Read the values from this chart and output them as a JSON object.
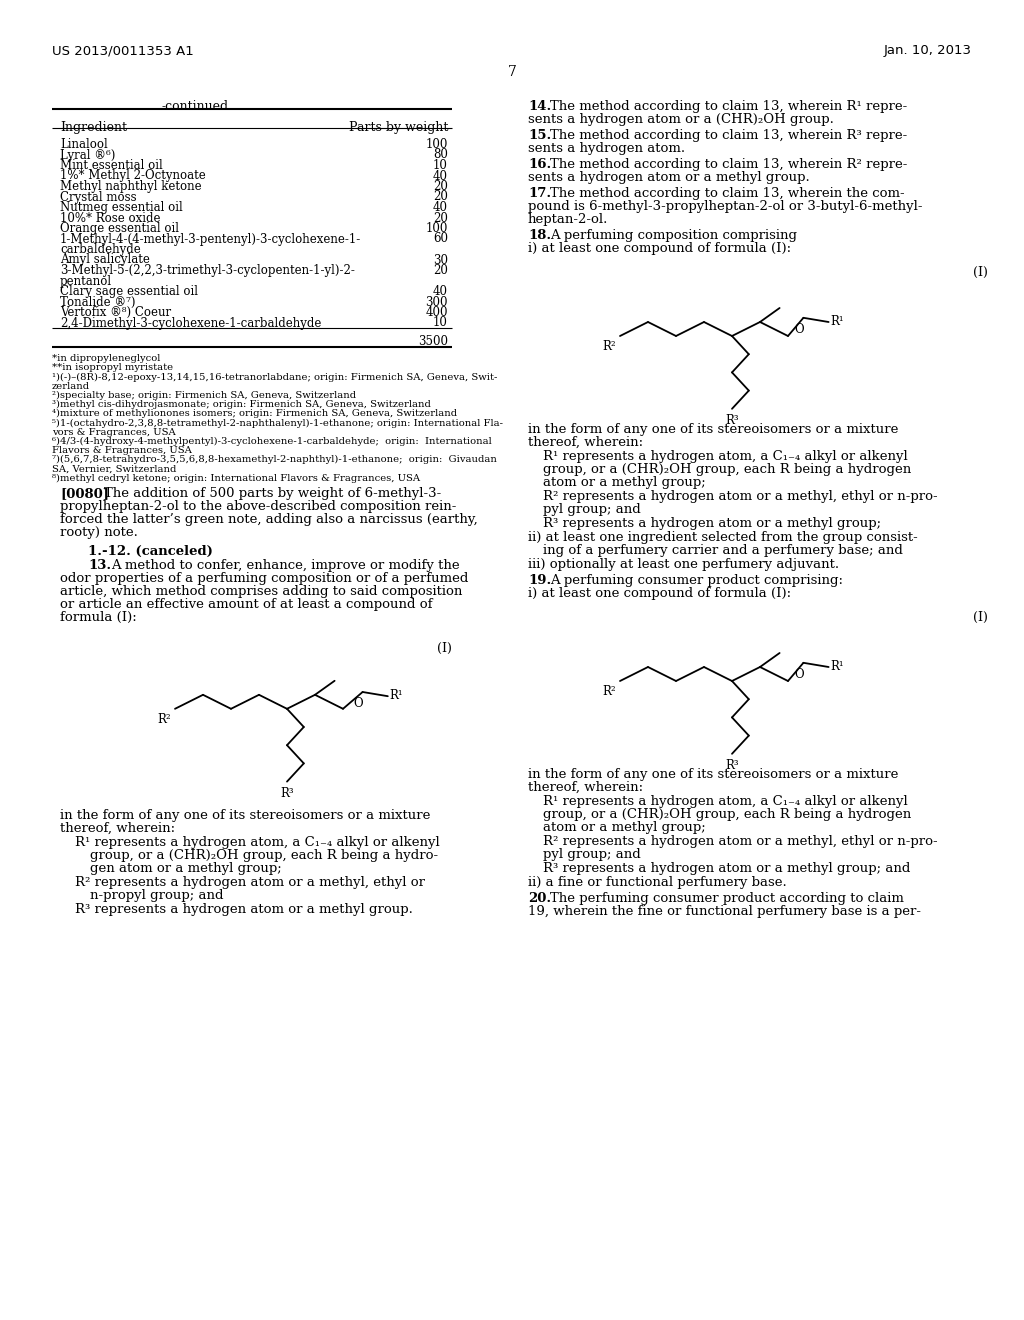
{
  "background_color": "#ffffff",
  "header_left": "US 2013/0011353 A1",
  "header_right": "Jan. 10, 2013",
  "page_number": "7"
}
